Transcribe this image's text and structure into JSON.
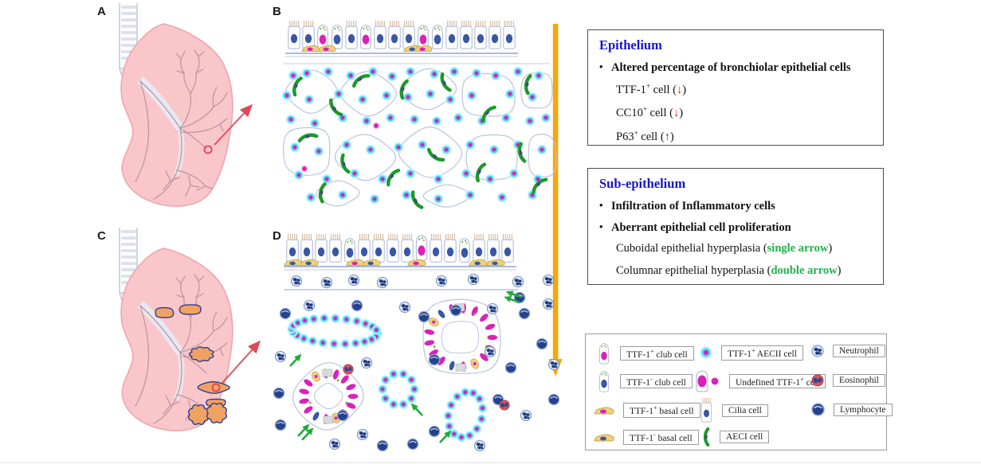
{
  "figure": {
    "panel_labels": {
      "a": "A",
      "b": "B",
      "c": "C",
      "d": "D"
    }
  },
  "colors": {
    "title_blue": "#1414cd",
    "arrow_red": "#e02424",
    "arrow_blue": "#2424dd",
    "highlight_green": "#21b14b",
    "orange_flow_arrow": "#f6a70b",
    "lung_pink": "#f9c6ca",
    "lesion_orange": "#f0a263",
    "magenta_nucleus": "#da22b8",
    "blue_nucleus": "#3a57a5",
    "aec2_cyan": "#4ed9f7",
    "aec1_green": "#1c9a27",
    "basal_tan": "#efd27c",
    "immune_navy": "#24418c",
    "eosinophil_red": "#d95560"
  },
  "epithelium_box": {
    "title": "Epithelium",
    "bullet": "Altered percentage of bronchiolar epithelial cells",
    "items": [
      {
        "pre": "TTF-1",
        "sup": "+",
        "mid": " cell (",
        "arrow": "↓",
        "end": ")"
      },
      {
        "pre": "CC10",
        "sup": "+",
        "mid": " cell (",
        "arrow": "↓",
        "end": ")"
      },
      {
        "pre": "P63",
        "sup": "+",
        "mid": " cell (",
        "arrow": "↑",
        "end": ")"
      }
    ]
  },
  "subepithelium_box": {
    "title": "Sub-epithelium",
    "bullet1": "Infiltration of Inflammatory cells",
    "bullet2": "Aberrant epithelial cell proliferation",
    "items": [
      {
        "pre": "Cuboidal epithelial hyperplasia (",
        "hl": "single arrow",
        "end": ")"
      },
      {
        "pre": "Columnar epithelial hyperplasia (",
        "hl": "double arrow",
        "end": ")"
      }
    ]
  },
  "legend": {
    "items": [
      {
        "pre": "TTF-1",
        "sup": "+",
        "post": " club cell",
        "icon": "ttf1-pos-club-cell"
      },
      {
        "pre": "TTF-1",
        "sup": "-",
        "post": " club cell",
        "icon": "ttf1-neg-club-cell"
      },
      {
        "pre": "TTF-1",
        "sup": "+",
        "post": " basal cell",
        "icon": "ttf1-pos-basal-cell"
      },
      {
        "pre": "TTF-1",
        "sup": "-",
        "post": " basal cell",
        "icon": "ttf1-neg-basal-cell"
      },
      {
        "pre": "TTF-1",
        "sup": "+",
        "post": " AECII cell",
        "icon": "ttf1-pos-aec2-cell"
      },
      {
        "pre": "Undefined TTF-1",
        "sup": "+",
        "post": " cell",
        "icon": "undefined-ttf1-cell"
      },
      {
        "pre": "Cilia cell",
        "sup": "",
        "post": "",
        "icon": "cilia-cell"
      },
      {
        "pre": "AECI cell",
        "sup": "",
        "post": "",
        "icon": "aec1-cell"
      },
      {
        "pre": "Neutrophil",
        "sup": "",
        "post": "",
        "icon": "neutrophil"
      },
      {
        "pre": "Eosinophil",
        "sup": "",
        "post": "",
        "icon": "eosinophil"
      },
      {
        "pre": "Lymphocyte",
        "sup": "",
        "post": "",
        "icon": "lymphocyte"
      }
    ]
  }
}
